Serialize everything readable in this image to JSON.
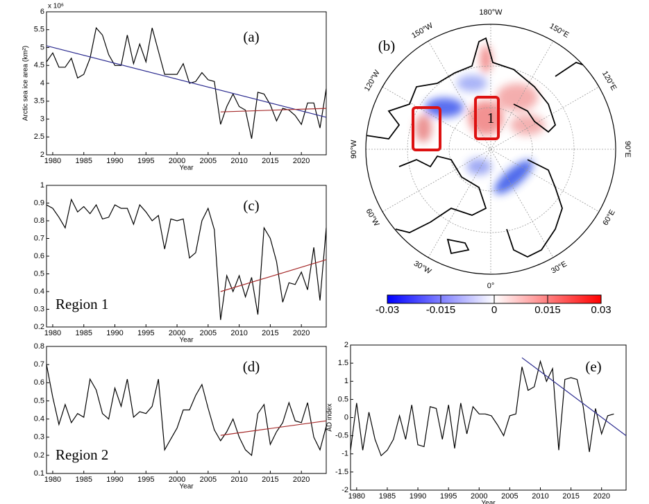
{
  "chart_data": [
    {
      "type": "line",
      "title": "(a)",
      "y_label": "Arctic sea ice area (km²)",
      "y_multiplier": "x 10⁶",
      "x_label": "Year",
      "xlim": [
        1979,
        2024
      ],
      "xticks": [
        1980,
        1985,
        1990,
        1995,
        2000,
        2005,
        2010,
        2015,
        2020
      ],
      "ylim": [
        2,
        6
      ],
      "yticks": [
        2,
        2.5,
        3,
        3.5,
        4,
        4.5,
        5,
        5.5,
        6
      ],
      "series": [
        {
          "color": "#000000",
          "x": [
            1979,
            1980,
            1981,
            1982,
            1983,
            1984,
            1985,
            1986,
            1987,
            1988,
            1989,
            1990,
            1991,
            1992,
            1993,
            1994,
            1995,
            1996,
            1997,
            1998,
            1999,
            2000,
            2001,
            2002,
            2003,
            2004,
            2005,
            2006,
            2007,
            2008,
            2009,
            2010,
            2011,
            2012,
            2013,
            2014,
            2015,
            2016,
            2017,
            2018,
            2019,
            2020,
            2021,
            2022,
            2023,
            2024
          ],
          "values": [
            4.6,
            4.85,
            4.45,
            4.45,
            4.7,
            4.15,
            4.25,
            4.7,
            5.55,
            5.35,
            4.8,
            4.5,
            4.5,
            5.35,
            4.55,
            5.1,
            4.6,
            5.55,
            4.9,
            4.25,
            4.25,
            4.25,
            4.55,
            4.0,
            4.05,
            4.3,
            4.1,
            4.05,
            2.85,
            3.35,
            3.7,
            3.35,
            3.25,
            2.45,
            3.75,
            3.7,
            3.4,
            2.95,
            3.3,
            3.25,
            3.1,
            2.85,
            3.45,
            3.45,
            2.75,
            3.85
          ]
        }
      ],
      "trend_lines": [
        {
          "color": "#2b2b8f",
          "x": [
            1979,
            2024
          ],
          "values": [
            5.05,
            3.05
          ]
        },
        {
          "color": "#a52a2a",
          "x": [
            2007,
            2024
          ],
          "values": [
            3.2,
            3.3
          ]
        }
      ]
    },
    {
      "type": "line",
      "title": "(c)",
      "annotation": "Region 1",
      "x_label": "Year",
      "xlim": [
        1979,
        2024
      ],
      "xticks": [
        1980,
        1985,
        1990,
        1995,
        2000,
        2005,
        2010,
        2015,
        2020
      ],
      "ylim": [
        0.2,
        1
      ],
      "yticks": [
        0.2,
        0.3,
        0.4,
        0.5,
        0.6,
        0.7,
        0.8,
        0.9,
        1
      ],
      "series": [
        {
          "color": "#000000",
          "x": [
            1979,
            1980,
            1981,
            1982,
            1983,
            1984,
            1985,
            1986,
            1987,
            1988,
            1989,
            1990,
            1991,
            1992,
            1993,
            1994,
            1995,
            1996,
            1997,
            1998,
            1999,
            2000,
            2001,
            2002,
            2003,
            2004,
            2005,
            2006,
            2007,
            2008,
            2009,
            2010,
            2011,
            2012,
            2013,
            2014,
            2015,
            2016,
            2017,
            2018,
            2019,
            2020,
            2021,
            2022,
            2023,
            2024
          ],
          "values": [
            0.89,
            0.87,
            0.82,
            0.76,
            0.92,
            0.85,
            0.88,
            0.84,
            0.89,
            0.81,
            0.82,
            0.89,
            0.87,
            0.87,
            0.78,
            0.89,
            0.85,
            0.8,
            0.83,
            0.64,
            0.81,
            0.8,
            0.81,
            0.59,
            0.62,
            0.8,
            0.87,
            0.75,
            0.24,
            0.49,
            0.4,
            0.49,
            0.37,
            0.48,
            0.27,
            0.76,
            0.7,
            0.57,
            0.34,
            0.45,
            0.44,
            0.51,
            0.41,
            0.65,
            0.35,
            0.76
          ]
        }
      ],
      "trend_lines": [
        {
          "color": "#a52a2a",
          "x": [
            2007,
            2024
          ],
          "values": [
            0.4,
            0.58
          ]
        }
      ]
    },
    {
      "type": "line",
      "title": "(d)",
      "annotation": "Region 2",
      "x_label": "Year",
      "xlim": [
        1979,
        2024
      ],
      "xticks": [
        1980,
        1985,
        1990,
        1995,
        2000,
        2005,
        2010,
        2015,
        2020
      ],
      "ylim": [
        0.1,
        0.8
      ],
      "yticks": [
        0.1,
        0.2,
        0.3,
        0.4,
        0.5,
        0.6,
        0.7,
        0.8
      ],
      "series": [
        {
          "color": "#000000",
          "x": [
            1979,
            1980,
            1981,
            1982,
            1983,
            1984,
            1985,
            1986,
            1987,
            1988,
            1989,
            1990,
            1991,
            1992,
            1993,
            1994,
            1995,
            1996,
            1997,
            1998,
            1999,
            2000,
            2001,
            2002,
            2003,
            2004,
            2005,
            2006,
            2007,
            2008,
            2009,
            2010,
            2011,
            2012,
            2013,
            2014,
            2015,
            2016,
            2017,
            2018,
            2019,
            2020,
            2021,
            2022,
            2023,
            2024
          ],
          "values": [
            0.7,
            0.52,
            0.37,
            0.48,
            0.38,
            0.43,
            0.41,
            0.62,
            0.56,
            0.43,
            0.4,
            0.57,
            0.47,
            0.62,
            0.41,
            0.44,
            0.43,
            0.47,
            0.62,
            0.23,
            0.29,
            0.35,
            0.45,
            0.45,
            0.53,
            0.59,
            0.46,
            0.34,
            0.28,
            0.33,
            0.4,
            0.3,
            0.23,
            0.2,
            0.43,
            0.48,
            0.26,
            0.33,
            0.38,
            0.49,
            0.39,
            0.38,
            0.49,
            0.3,
            0.23,
            0.36
          ]
        }
      ],
      "trend_lines": [
        {
          "color": "#a52a2a",
          "x": [
            2007,
            2024
          ],
          "values": [
            0.31,
            0.39
          ]
        }
      ]
    },
    {
      "type": "line",
      "title": "(e)",
      "y_label": "AD index",
      "x_label": "Year",
      "xlim": [
        1979,
        2024
      ],
      "xticks": [
        1980,
        1985,
        1990,
        1995,
        2000,
        2005,
        2010,
        2015,
        2020
      ],
      "ylim": [
        -2,
        2
      ],
      "yticks": [
        -2,
        -1.5,
        -1,
        -0.5,
        0,
        0.5,
        1,
        1.5,
        2
      ],
      "series": [
        {
          "color": "#000000",
          "x": [
            1979,
            1980,
            1981,
            1982,
            1983,
            1984,
            1985,
            1986,
            1987,
            1988,
            1989,
            1990,
            1991,
            1992,
            1993,
            1994,
            1995,
            1996,
            1997,
            1998,
            1999,
            2000,
            2001,
            2002,
            2003,
            2004,
            2005,
            2006,
            2007,
            2008,
            2009,
            2010,
            2011,
            2012,
            2013,
            2014,
            2015,
            2016,
            2017,
            2018,
            2019,
            2020,
            2021,
            2022
          ],
          "values": [
            -0.9,
            0.4,
            -0.9,
            0.15,
            -0.6,
            -1.05,
            -0.9,
            -0.6,
            0.05,
            -0.6,
            0.35,
            -0.75,
            -0.8,
            0.3,
            0.25,
            -0.6,
            0.35,
            -0.85,
            0.4,
            -0.45,
            0.3,
            0.1,
            0.1,
            0.05,
            -0.2,
            -0.5,
            0.05,
            0.1,
            1.4,
            0.75,
            0.85,
            1.55,
            1.0,
            1.35,
            -0.9,
            1.05,
            1.1,
            1.05,
            0.3,
            -0.95,
            0.25,
            -0.45,
            0.05,
            0.1
          ]
        }
      ],
      "trend_lines": [
        {
          "color": "#2b2b8f",
          "x": [
            2007,
            2024
          ],
          "values": [
            1.65,
            -0.5
          ]
        }
      ]
    },
    {
      "type": "map",
      "title": "(b)",
      "box_label": "1",
      "longitude_labels": [
        "180°W",
        "150°E",
        "120°E",
        "90°E",
        "60°E",
        "30°E",
        "0°",
        "30°W",
        "60°W",
        "90°W",
        "120°W",
        "150°W"
      ]
    },
    {
      "type": "colorbar",
      "lim": [
        -0.03,
        0.03
      ],
      "ticks": [
        -0.03,
        -0.015,
        0,
        0.015,
        0.03
      ],
      "colors": [
        "#0000ff",
        "#ffffff",
        "#ff0000"
      ]
    }
  ]
}
